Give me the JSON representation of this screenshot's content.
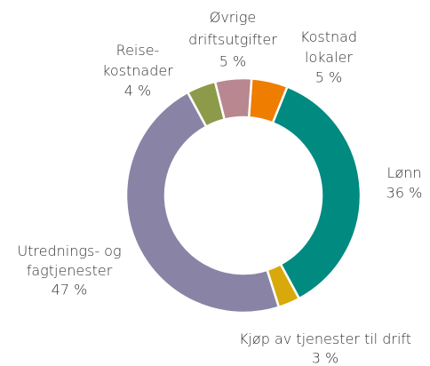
{
  "chart_data": {
    "type": "donut",
    "categories": [
      "Kostnad\nlokaler",
      "Lønn",
      "Kjøp av tjenester til drift",
      "Utrednings- og\nfagtjenester",
      "Reise-\nkostnader",
      "Øvrige\ndriftsutgifter"
    ],
    "values": [
      5,
      36,
      3,
      47,
      4,
      5
    ],
    "value_labels": [
      "5 %",
      "36 %",
      "3 %",
      "47 %",
      "4 %",
      "5 %"
    ],
    "colors": [
      "#ef7d00",
      "#008a80",
      "#d8a90a",
      "#8984a6",
      "#8c9a4a",
      "#b8878f"
    ]
  }
}
